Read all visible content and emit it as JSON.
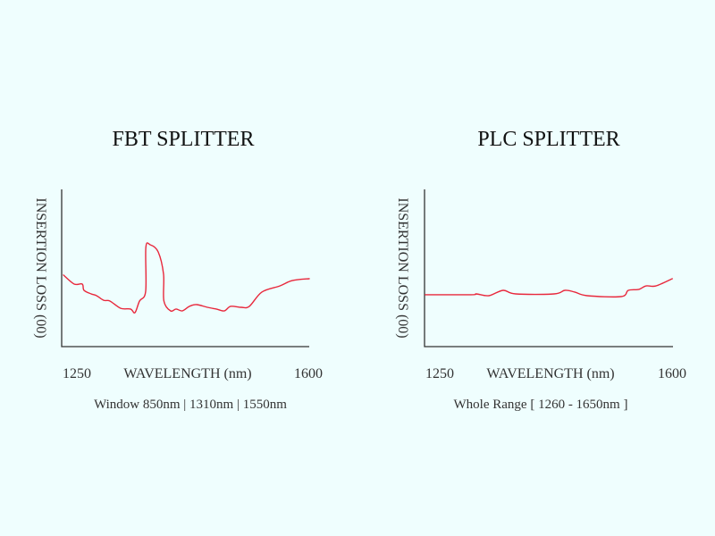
{
  "colors": {
    "curve": "#e8283c",
    "axis": "#333333",
    "background": "#effefe"
  },
  "chart_data": [
    {
      "type": "line",
      "title": "FBT SPLITTER",
      "xlabel": "WAVELENGTH (nm)",
      "ylabel": "INSERTION LOSS (00)",
      "subtitle": "Window  850nm | 1310nm | 1550nm",
      "xticks": [
        "1250",
        "1600"
      ],
      "xlim": [
        1250,
        1600
      ],
      "ylim": [
        0,
        10
      ],
      "grid": false,
      "x": [
        1252.5,
        1267.7,
        1279,
        1281.6,
        1291.7,
        1299.3,
        1309.4,
        1318.2,
        1333.4,
        1347.3,
        1353.6,
        1360,
        1368.8,
        1369,
        1375.2,
        1386.5,
        1394,
        1394.5,
        1404,
        1411.7,
        1420.6,
        1430.7,
        1440.8,
        1456,
        1468.6,
        1480,
        1488.8,
        1504,
        1515.3,
        1533,
        1558.3,
        1576,
        1600
      ],
      "y": [
        4.55,
        3.98,
        3.98,
        3.58,
        3.35,
        3.24,
        2.95,
        2.9,
        2.44,
        2.39,
        2.16,
        2.9,
        3.52,
        6.31,
        6.48,
        6.02,
        4.6,
        2.9,
        2.27,
        2.39,
        2.27,
        2.56,
        2.67,
        2.5,
        2.39,
        2.27,
        2.56,
        2.5,
        2.56,
        3.47,
        3.86,
        4.2,
        4.32
      ]
    },
    {
      "type": "line",
      "title": "PLC SPLITTER",
      "xlabel": "WAVELENGTH (nm)",
      "ylabel": "INSERTION LOSS (00)",
      "subtitle": "Whole Range [ 1260 - 1650nm ]",
      "xticks": [
        "1250",
        "1600"
      ],
      "xlim": [
        1250,
        1600
      ],
      "ylim": [
        0,
        10
      ],
      "grid": false,
      "x": [
        1251,
        1315.5,
        1323,
        1340.6,
        1360.8,
        1378.4,
        1432.6,
        1447.7,
        1461.5,
        1479,
        1527,
        1537,
        1552,
        1562,
        1576,
        1599
      ],
      "y": [
        3.3,
        3.3,
        3.35,
        3.24,
        3.58,
        3.35,
        3.35,
        3.58,
        3.47,
        3.24,
        3.18,
        3.58,
        3.64,
        3.86,
        3.86,
        4.32
      ]
    }
  ]
}
